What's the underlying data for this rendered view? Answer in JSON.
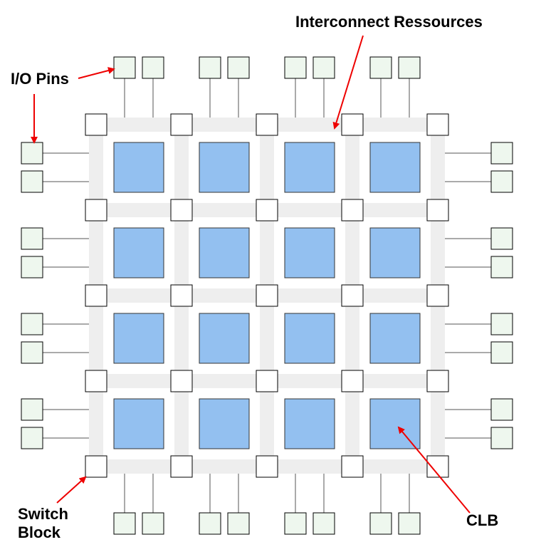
{
  "labels": {
    "interconnect": "Interconnect Ressources",
    "io_pins": "I/O Pins",
    "switch_block_line1": "Switch",
    "switch_block_line2": "Block",
    "clb": "CLB"
  },
  "grid": {
    "rows": 4,
    "cols": 4
  },
  "colors": {
    "clb_fill": "#93c0f0",
    "clb_stroke": "#333333",
    "routing_channel": "#eeeeee",
    "switch_block_fill": "#ffffff",
    "pin_fill": "#eef7ee",
    "wire": "#555555",
    "arrow": "#ee0000"
  }
}
